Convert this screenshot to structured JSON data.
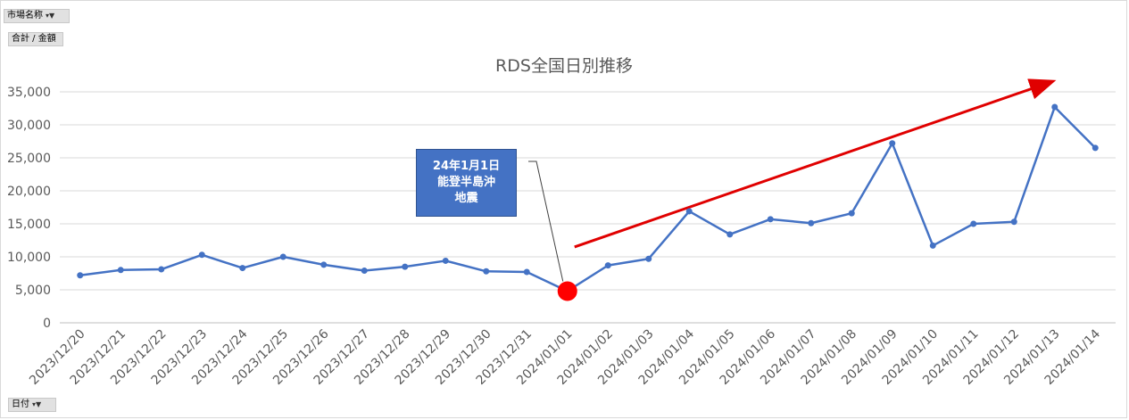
{
  "pivot": {
    "field_top": "市場名称",
    "value_field": "合計 / 金額",
    "axis_field": "日付"
  },
  "icons": {
    "filter": "filter-dropdown-icon"
  },
  "colors": {
    "series": "#4472c4",
    "arrow": "#e00000",
    "marker": "#ff0000",
    "callout": "#4472c4"
  },
  "callout": {
    "line1": "24年1月1日",
    "line2": "能登半島沖",
    "line3": "地震"
  },
  "chart_data": {
    "type": "line",
    "title": "RDS全国日別推移",
    "categories": [
      "2023/12/20",
      "2023/12/21",
      "2023/12/22",
      "2023/12/23",
      "2023/12/24",
      "2023/12/25",
      "2023/12/26",
      "2023/12/27",
      "2023/12/28",
      "2023/12/29",
      "2023/12/30",
      "2023/12/31",
      "2024/01/01",
      "2024/01/02",
      "2024/01/03",
      "2024/01/04",
      "2024/01/05",
      "2024/01/06",
      "2024/01/07",
      "2024/01/08",
      "2024/01/09",
      "2024/01/10",
      "2024/01/11",
      "2024/01/12",
      "2024/01/13",
      "2024/01/14"
    ],
    "values": [
      7200,
      8000,
      8100,
      10300,
      8300,
      10000,
      8800,
      7900,
      8500,
      9400,
      7800,
      7700,
      4800,
      8700,
      9700,
      16900,
      13400,
      15700,
      15100,
      16600,
      27200,
      11700,
      15000,
      15300,
      32700,
      26500
    ],
    "ylim": [
      0,
      35000
    ],
    "yticks": [
      0,
      5000,
      10000,
      15000,
      20000,
      25000,
      30000,
      35000
    ],
    "ytick_labels": [
      "0",
      "5,000",
      "10,000",
      "15,000",
      "20,000",
      "25,000",
      "30,000",
      "35,000"
    ],
    "grid": true,
    "highlight_category": "2024/01/01",
    "trend_arrow": {
      "from": "2024/01/01",
      "to": "2024/01/13",
      "y_from": 11500,
      "y_to": 36500
    }
  }
}
